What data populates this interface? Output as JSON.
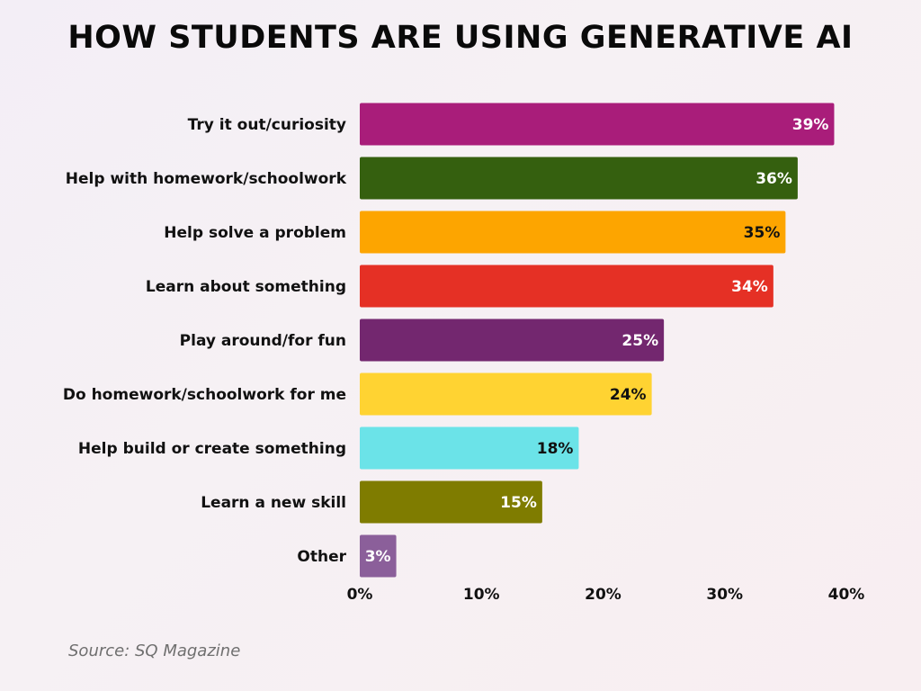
{
  "chart_data": {
    "type": "bar",
    "orientation": "horizontal",
    "title": "HOW STUDENTS ARE USING GENERATIVE AI",
    "categories": [
      "Try it out/curiosity",
      "Help with homework/schoolwork",
      "Help solve a problem",
      "Learn about something",
      "Play around/for fun",
      "Do homework/schoolwork for me",
      "Help build or create something",
      "Learn a new skill",
      "Other"
    ],
    "values": [
      39,
      36,
      35,
      34,
      25,
      24,
      18,
      15,
      3
    ],
    "data_labels": [
      "39%",
      "36%",
      "35%",
      "34%",
      "25%",
      "24%",
      "18%",
      "15%",
      "3%"
    ],
    "bar_colors": [
      "#a91d7a",
      "#35600f",
      "#fda500",
      "#e53025",
      "#73276f",
      "#ffd332",
      "#6be3e8",
      "#7f7c00",
      "#8b5f9a"
    ],
    "label_colors": [
      "#ffffff",
      "#ffffff",
      "#111111",
      "#ffffff",
      "#ffffff",
      "#111111",
      "#111111",
      "#ffffff",
      "#ffffff"
    ],
    "xlim": [
      0,
      40
    ],
    "x_ticks": [
      0,
      10,
      20,
      30,
      40
    ],
    "x_tick_labels": [
      "0%",
      "10%",
      "20%",
      "30%",
      "40%"
    ],
    "grid": false,
    "legend": "none"
  },
  "source": "Source: SQ Magazine"
}
